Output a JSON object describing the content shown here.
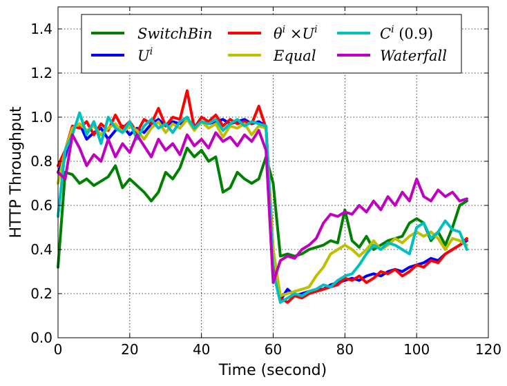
{
  "chart_data": {
    "type": "line",
    "title": "",
    "xlabel": "Time (second)",
    "ylabel": "HTTP Throughput",
    "xlim": [
      0,
      120
    ],
    "ylim": [
      0,
      1.5
    ],
    "xticks": [
      0,
      20,
      40,
      60,
      80,
      100,
      120
    ],
    "xtick_labels": [
      "0",
      "20",
      "40",
      "60",
      "80",
      "100",
      "120"
    ],
    "yticks": [
      0.0,
      0.2,
      0.4,
      0.6,
      0.8,
      1.0,
      1.2,
      1.4
    ],
    "ytick_labels": [
      "0.0",
      "0.2",
      "0.4",
      "0.6",
      "0.8",
      "1.0",
      "1.2",
      "1.4"
    ],
    "grid": true,
    "legend_position": "top",
    "series": [
      {
        "name": "SwitchBin",
        "color": "#008000",
        "x": [
          0,
          2,
          4,
          6,
          8,
          10,
          12,
          14,
          16,
          18,
          20,
          22,
          24,
          26,
          28,
          30,
          32,
          34,
          36,
          38,
          40,
          42,
          44,
          46,
          48,
          50,
          52,
          54,
          56,
          58,
          60,
          62,
          64,
          66,
          68,
          70,
          72,
          74,
          76,
          78,
          80,
          82,
          84,
          86,
          88,
          90,
          92,
          94,
          96,
          98,
          100,
          102,
          104,
          106,
          108,
          110,
          112,
          114
        ],
        "y": [
          0.32,
          0.75,
          0.74,
          0.7,
          0.72,
          0.69,
          0.71,
          0.73,
          0.78,
          0.68,
          0.72,
          0.69,
          0.66,
          0.62,
          0.66,
          0.75,
          0.72,
          0.77,
          0.86,
          0.82,
          0.85,
          0.8,
          0.82,
          0.66,
          0.68,
          0.75,
          0.72,
          0.7,
          0.72,
          0.82,
          0.7,
          0.37,
          0.38,
          0.37,
          0.38,
          0.4,
          0.41,
          0.42,
          0.44,
          0.43,
          0.58,
          0.44,
          0.41,
          0.46,
          0.4,
          0.42,
          0.44,
          0.45,
          0.46,
          0.52,
          0.54,
          0.52,
          0.44,
          0.48,
          0.42,
          0.5,
          0.6,
          0.62
        ]
      },
      {
        "name": "U^i",
        "color": "#0000ff",
        "x": [
          0,
          2,
          4,
          6,
          8,
          10,
          12,
          14,
          16,
          18,
          20,
          22,
          24,
          26,
          28,
          30,
          32,
          34,
          36,
          38,
          40,
          42,
          44,
          46,
          48,
          50,
          52,
          54,
          56,
          58,
          60,
          62,
          64,
          66,
          68,
          70,
          72,
          74,
          76,
          78,
          80,
          82,
          84,
          86,
          88,
          90,
          92,
          94,
          96,
          98,
          100,
          102,
          104,
          106,
          108,
          110,
          112,
          114
        ],
        "y": [
          0.75,
          0.82,
          0.95,
          0.97,
          0.9,
          0.93,
          0.95,
          0.9,
          0.94,
          0.96,
          0.92,
          0.95,
          0.93,
          0.97,
          0.99,
          0.96,
          0.98,
          0.97,
          0.99,
          0.96,
          0.98,
          0.97,
          0.98,
          0.99,
          0.97,
          0.98,
          0.99,
          0.97,
          0.98,
          0.96,
          0.4,
          0.17,
          0.22,
          0.19,
          0.2,
          0.21,
          0.22,
          0.22,
          0.24,
          0.25,
          0.26,
          0.27,
          0.26,
          0.28,
          0.29,
          0.28,
          0.3,
          0.31,
          0.3,
          0.32,
          0.33,
          0.34,
          0.36,
          0.35,
          0.38,
          0.4,
          0.42,
          0.44
        ]
      },
      {
        "name": "θ^i ×U^i",
        "color": "#ff0000",
        "x": [
          0,
          2,
          4,
          6,
          8,
          10,
          12,
          14,
          16,
          18,
          20,
          22,
          24,
          26,
          28,
          30,
          32,
          34,
          36,
          38,
          40,
          42,
          44,
          46,
          48,
          50,
          52,
          54,
          56,
          58,
          60,
          62,
          64,
          66,
          68,
          70,
          72,
          74,
          76,
          78,
          80,
          82,
          84,
          86,
          88,
          90,
          92,
          94,
          96,
          98,
          100,
          102,
          104,
          106,
          108,
          110,
          112,
          114
        ],
        "y": [
          0.78,
          0.85,
          0.96,
          0.95,
          0.98,
          0.92,
          0.97,
          0.94,
          1.01,
          0.95,
          0.98,
          0.93,
          0.99,
          0.97,
          1.04,
          0.96,
          1.0,
          0.99,
          1.12,
          0.95,
          1.0,
          0.98,
          1.01,
          0.96,
          0.99,
          0.97,
          0.98,
          0.97,
          1.05,
          0.95,
          0.35,
          0.18,
          0.16,
          0.19,
          0.18,
          0.2,
          0.21,
          0.22,
          0.23,
          0.24,
          0.27,
          0.26,
          0.28,
          0.25,
          0.27,
          0.3,
          0.29,
          0.31,
          0.28,
          0.3,
          0.33,
          0.32,
          0.35,
          0.34,
          0.38,
          0.4,
          0.42,
          0.45
        ]
      },
      {
        "name": "Equal",
        "color": "#bfbf00",
        "x": [
          0,
          2,
          4,
          6,
          8,
          10,
          12,
          14,
          16,
          18,
          20,
          22,
          24,
          26,
          28,
          30,
          32,
          34,
          36,
          38,
          40,
          42,
          44,
          46,
          48,
          50,
          52,
          54,
          56,
          58,
          60,
          62,
          64,
          66,
          68,
          70,
          72,
          74,
          76,
          78,
          80,
          82,
          84,
          86,
          88,
          90,
          92,
          94,
          96,
          98,
          100,
          102,
          104,
          106,
          108,
          110,
          112,
          114
        ],
        "y": [
          0.7,
          0.85,
          0.95,
          0.97,
          0.94,
          0.96,
          0.92,
          0.95,
          0.97,
          0.93,
          0.96,
          0.94,
          0.9,
          0.95,
          0.98,
          0.93,
          0.97,
          0.95,
          0.99,
          0.94,
          0.98,
          0.95,
          0.97,
          0.91,
          0.96,
          0.95,
          0.97,
          0.92,
          0.96,
          0.95,
          0.4,
          0.19,
          0.2,
          0.21,
          0.22,
          0.23,
          0.28,
          0.32,
          0.38,
          0.4,
          0.42,
          0.4,
          0.37,
          0.4,
          0.44,
          0.4,
          0.42,
          0.45,
          0.43,
          0.46,
          0.48,
          0.46,
          0.48,
          0.45,
          0.4,
          0.45,
          0.44,
          0.42
        ]
      },
      {
        "name": "C^i (0.9)",
        "color": "#00bfbf",
        "x": [
          0,
          2,
          4,
          6,
          8,
          10,
          12,
          14,
          16,
          18,
          20,
          22,
          24,
          26,
          28,
          30,
          32,
          34,
          36,
          38,
          40,
          42,
          44,
          46,
          48,
          50,
          52,
          54,
          56,
          58,
          60,
          62,
          64,
          66,
          68,
          70,
          72,
          74,
          76,
          78,
          80,
          82,
          84,
          86,
          88,
          90,
          92,
          94,
          96,
          98,
          100,
          102,
          104,
          106,
          108,
          110,
          112,
          114
        ],
        "y": [
          0.55,
          0.85,
          0.92,
          1.02,
          0.92,
          0.98,
          0.88,
          1.0,
          0.95,
          0.93,
          0.98,
          0.9,
          0.96,
          0.99,
          0.95,
          0.97,
          0.93,
          0.98,
          1.0,
          0.95,
          0.98,
          0.97,
          0.99,
          0.94,
          0.97,
          0.99,
          0.96,
          0.98,
          0.97,
          0.96,
          0.3,
          0.16,
          0.18,
          0.2,
          0.19,
          0.21,
          0.22,
          0.24,
          0.23,
          0.26,
          0.28,
          0.29,
          0.33,
          0.38,
          0.42,
          0.4,
          0.43,
          0.42,
          0.4,
          0.38,
          0.5,
          0.52,
          0.45,
          0.48,
          0.53,
          0.49,
          0.48,
          0.4
        ]
      },
      {
        "name": "Waterfall",
        "color": "#bf00bf",
        "x": [
          0,
          2,
          4,
          6,
          8,
          10,
          12,
          14,
          16,
          18,
          20,
          22,
          24,
          26,
          28,
          30,
          32,
          34,
          36,
          38,
          40,
          42,
          44,
          46,
          48,
          50,
          52,
          54,
          56,
          58,
          60,
          62,
          64,
          66,
          68,
          70,
          72,
          74,
          76,
          78,
          80,
          82,
          84,
          86,
          88,
          90,
          92,
          94,
          96,
          98,
          100,
          102,
          104,
          106,
          108,
          110,
          112,
          114
        ],
        "y": [
          0.75,
          0.72,
          0.92,
          0.86,
          0.78,
          0.83,
          0.8,
          0.9,
          0.82,
          0.88,
          0.84,
          0.92,
          0.87,
          0.82,
          0.9,
          0.85,
          0.88,
          0.83,
          0.92,
          0.87,
          0.9,
          0.86,
          0.93,
          0.89,
          0.91,
          0.87,
          0.92,
          0.89,
          0.94,
          0.85,
          0.25,
          0.35,
          0.37,
          0.36,
          0.4,
          0.42,
          0.45,
          0.52,
          0.56,
          0.55,
          0.57,
          0.56,
          0.6,
          0.57,
          0.62,
          0.58,
          0.64,
          0.6,
          0.66,
          0.62,
          0.72,
          0.64,
          0.62,
          0.67,
          0.64,
          0.66,
          0.62,
          0.63
        ]
      }
    ]
  },
  "legend": {
    "items": [
      {
        "key": "switchbin",
        "label": "SwitchBin"
      },
      {
        "key": "ui",
        "label": "U^i"
      },
      {
        "key": "theta",
        "label": "θ^i ×U^i"
      },
      {
        "key": "equal",
        "label": "Equal"
      },
      {
        "key": "ci",
        "label": "C^i (0.9)"
      },
      {
        "key": "waterfall",
        "label": "Waterfall"
      }
    ]
  }
}
